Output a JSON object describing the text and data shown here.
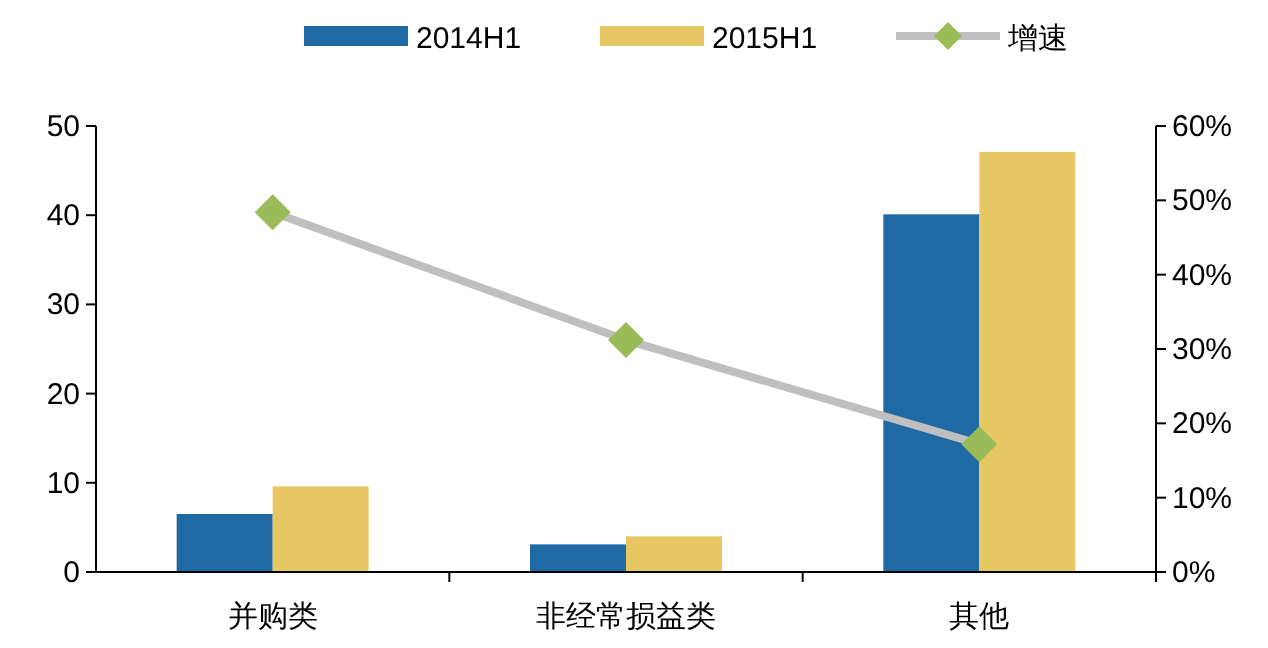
{
  "chart_data": {
    "type": "bar",
    "categories": [
      "并购类",
      "非经常损益类",
      "其他"
    ],
    "series": [
      {
        "name": "2014H1",
        "color": "#1f6aa5",
        "values": [
          6.5,
          3.1,
          40.1
        ]
      },
      {
        "name": "2015H1",
        "color": "#e6c763",
        "values": [
          9.6,
          4.0,
          47.1
        ]
      },
      {
        "name": "增速",
        "type": "line",
        "axis": "y2",
        "color": "#bfbfbf",
        "marker": "diamond",
        "colors": [
          "#9bbb59",
          "#9bbb59",
          "#9bbb59"
        ],
        "values": [
          48.4,
          31.2,
          17.2
        ]
      }
    ],
    "ylim": [
      0,
      50
    ],
    "yticks": [
      0,
      10,
      20,
      30,
      40,
      50
    ],
    "y2lim": [
      0,
      60
    ],
    "y2ticks": [
      {
        "value": 0,
        "label": "0%"
      },
      {
        "value": 10,
        "label": "10%"
      },
      {
        "value": 20,
        "label": "20%"
      },
      {
        "value": 30,
        "label": "30%"
      },
      {
        "value": 40,
        "label": "40%"
      },
      {
        "value": 50,
        "label": "50%"
      },
      {
        "value": 60,
        "label": "60%"
      }
    ],
    "legend": "top"
  }
}
